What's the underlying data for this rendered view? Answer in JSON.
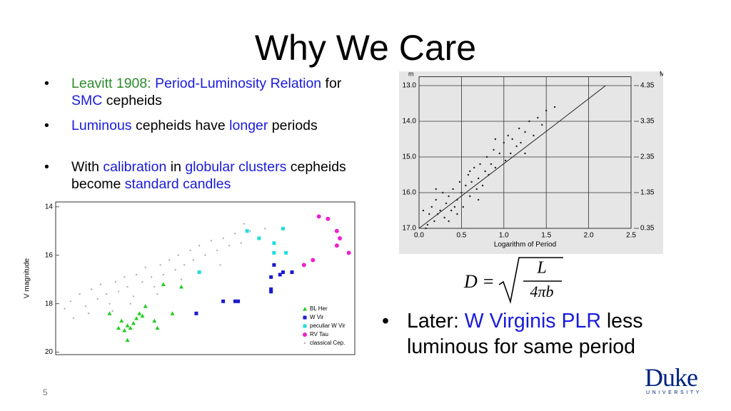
{
  "title": "Why We Care",
  "bullets": [
    {
      "runs": [
        {
          "text": "Leavitt 1908",
          "color": "#2e8b2e"
        },
        {
          "text": ": ",
          "color": "#2e8b2e"
        },
        {
          "text": "Period-Luminosity Relation",
          "color": "#1a1adc"
        },
        {
          "text": " for "
        },
        {
          "text": "SMC",
          "color": "#1a1adc"
        },
        {
          "text": " cepheids"
        }
      ]
    },
    {
      "runs": [
        {
          "text": "Luminous",
          "color": "#1a1adc"
        },
        {
          "text": " cepheids have "
        },
        {
          "text": "longer",
          "color": "#1a1adc"
        },
        {
          "text": " periods"
        }
      ]
    },
    {
      "runs": [
        {
          "text": "With "
        },
        {
          "text": "calibration",
          "color": "#1a1adc"
        },
        {
          "text": " in "
        },
        {
          "text": "globular clusters",
          "color": "#1a1adc"
        },
        {
          "text": " cepheids become "
        },
        {
          "text": "standard candles",
          "color": "#1a1adc"
        }
      ]
    }
  ],
  "bullet_right": {
    "runs": [
      {
        "text": "Later: "
      },
      {
        "text": "W Virginis PLR",
        "color": "#1a1adc"
      },
      {
        "text": " less luminous for same period"
      }
    ]
  },
  "formula": {
    "lhs": "D =",
    "numerator": "L",
    "denominator": "4πb"
  },
  "logo": {
    "name": "Duke",
    "subtitle": "UNIVERSITY"
  },
  "slide_number": "5",
  "chart_data": [
    {
      "type": "scatter",
      "xlabel": "Logarithm of Period",
      "ylabel": "m",
      "y2label": "M",
      "xlim": [
        0,
        2.5
      ],
      "ylim": [
        17.0,
        12.75
      ],
      "y2lim": [
        0.35,
        4.6
      ],
      "xticks": [
        {
          "value": 0,
          "label": "0.0"
        },
        0.5,
        {
          "value": 1,
          "label": "1.0"
        },
        1.5,
        {
          "value": 2,
          "label": "2.0"
        },
        2.5
      ],
      "yticks": [
        {
          "value": 13,
          "label": "13.0"
        },
        {
          "value": 14,
          "label": "14.0"
        },
        {
          "value": 15,
          "label": "15.0"
        },
        {
          "value": 16,
          "label": "16.0"
        },
        {
          "value": 17,
          "label": "17.0"
        }
      ],
      "y2ticks": [
        4.35,
        3.35,
        2.35,
        1.35,
        0.35
      ],
      "grid": true,
      "background": "#e6e6e6",
      "series": [
        {
          "color": "#222222",
          "marker": "dot",
          "x": [
            0.1,
            0.12,
            0.15,
            0.18,
            0.2,
            0.22,
            0.25,
            0.28,
            0.3,
            0.32,
            0.35,
            0.38,
            0.4,
            0.42,
            0.45,
            0.48,
            0.5,
            0.52,
            0.55,
            0.58,
            0.6,
            0.62,
            0.65,
            0.68,
            0.7,
            0.72,
            0.75,
            0.78,
            0.8,
            0.82,
            0.85,
            0.88,
            0.9,
            0.95,
            1.0,
            1.02,
            1.05,
            1.08,
            1.1,
            1.15,
            1.18,
            1.2,
            1.25,
            1.3,
            1.35,
            1.4,
            1.45,
            1.5,
            0.05,
            0.08,
            0.35,
            0.45,
            0.6,
            0.9,
            1.25,
            1.6,
            0.2,
            0.7
          ],
          "values": [
            16.9,
            16.6,
            16.4,
            16.8,
            16.2,
            16.6,
            16.5,
            16.0,
            16.7,
            16.3,
            16.1,
            16.5,
            15.9,
            16.4,
            16.2,
            15.7,
            16.0,
            16.4,
            15.8,
            15.5,
            16.1,
            15.7,
            15.3,
            15.9,
            15.6,
            15.2,
            15.8,
            15.4,
            15.0,
            15.5,
            15.2,
            14.8,
            15.3,
            14.9,
            14.6,
            15.1,
            14.4,
            14.9,
            14.5,
            14.7,
            14.2,
            14.6,
            14.3,
            14.0,
            14.4,
            13.9,
            14.1,
            13.7,
            16.5,
            17.0,
            16.8,
            16.6,
            15.4,
            14.5,
            14.9,
            13.6,
            15.9,
            16.2
          ]
        }
      ],
      "trend_line": {
        "x": [
          0,
          1.6,
          2.2
        ],
        "values": [
          17.0,
          14.1,
          13.0
        ],
        "color": "#222222"
      }
    },
    {
      "type": "scatter",
      "ylabel": "V magnitude",
      "xlim": [
        0,
        100
      ],
      "ylim": [
        20.1,
        13.8
      ],
      "yticks": [
        14,
        16,
        18,
        20
      ],
      "grid": false,
      "background": "#ffffff",
      "legend": "lower right",
      "series": [
        {
          "name": "BL Her",
          "color": "#22cc22",
          "marker": "triangle",
          "x": [
            36,
            42,
            18,
            22,
            24,
            26,
            27,
            28,
            30,
            29,
            33,
            34,
            39,
            23,
            25,
            21,
            24
          ],
          "values": [
            17.2,
            17.3,
            18.4,
            18.7,
            18.9,
            18.8,
            18.6,
            18.4,
            18.1,
            18.5,
            18.7,
            19.0,
            18.4,
            19.1,
            19.0,
            19.0,
            19.5
          ]
        },
        {
          "name": "W Vir",
          "color": "#1a1acc",
          "marker": "square",
          "x": [
            47,
            56,
            60,
            61,
            72,
            72,
            72,
            75,
            76,
            79,
            73
          ],
          "values": [
            18.4,
            17.9,
            17.9,
            17.9,
            17.4,
            17.5,
            16.9,
            16.8,
            16.7,
            16.7,
            16.4
          ]
        },
        {
          "name": "peculiar W Vir",
          "color": "#22dddd",
          "marker": "square",
          "x": [
            48,
            64,
            68,
            76,
            73,
            77,
            73
          ],
          "values": [
            16.7,
            15.0,
            15.3,
            14.9,
            15.9,
            15.9,
            15.5
          ]
        },
        {
          "name": "RV Tau",
          "color": "#ee22cc",
          "marker": "circle",
          "x": [
            88,
            91,
            94,
            95,
            94,
            98,
            86,
            83
          ],
          "values": [
            14.4,
            14.5,
            15.0,
            15.3,
            15.6,
            15.9,
            16.2,
            16.4
          ]
        },
        {
          "name": "classical Cep.",
          "color": "#b0b0b0",
          "marker": "dot",
          "x": [
            5,
            8,
            10,
            12,
            14,
            15,
            17,
            18,
            20,
            21,
            23,
            24,
            26,
            27,
            29,
            30,
            32,
            33,
            35,
            36,
            38,
            40,
            41,
            43,
            45,
            46,
            48,
            50,
            52,
            54,
            56,
            58,
            60,
            62,
            65,
            68,
            70,
            11,
            19,
            25,
            34,
            42,
            6,
            3,
            55,
            63
          ],
          "values": [
            17.9,
            17.6,
            18.1,
            17.4,
            17.8,
            17.2,
            17.6,
            18.0,
            17.1,
            17.5,
            16.9,
            17.3,
            17.7,
            16.8,
            17.1,
            16.5,
            16.9,
            17.3,
            16.4,
            16.8,
            16.2,
            16.6,
            16.0,
            16.4,
            15.8,
            16.2,
            15.6,
            16.0,
            15.4,
            15.8,
            15.3,
            15.6,
            15.1,
            15.5,
            15.0,
            15.3,
            14.9,
            18.4,
            18.3,
            18.0,
            17.6,
            17.0,
            18.6,
            18.2,
            16.4,
            14.7
          ]
        }
      ]
    }
  ]
}
